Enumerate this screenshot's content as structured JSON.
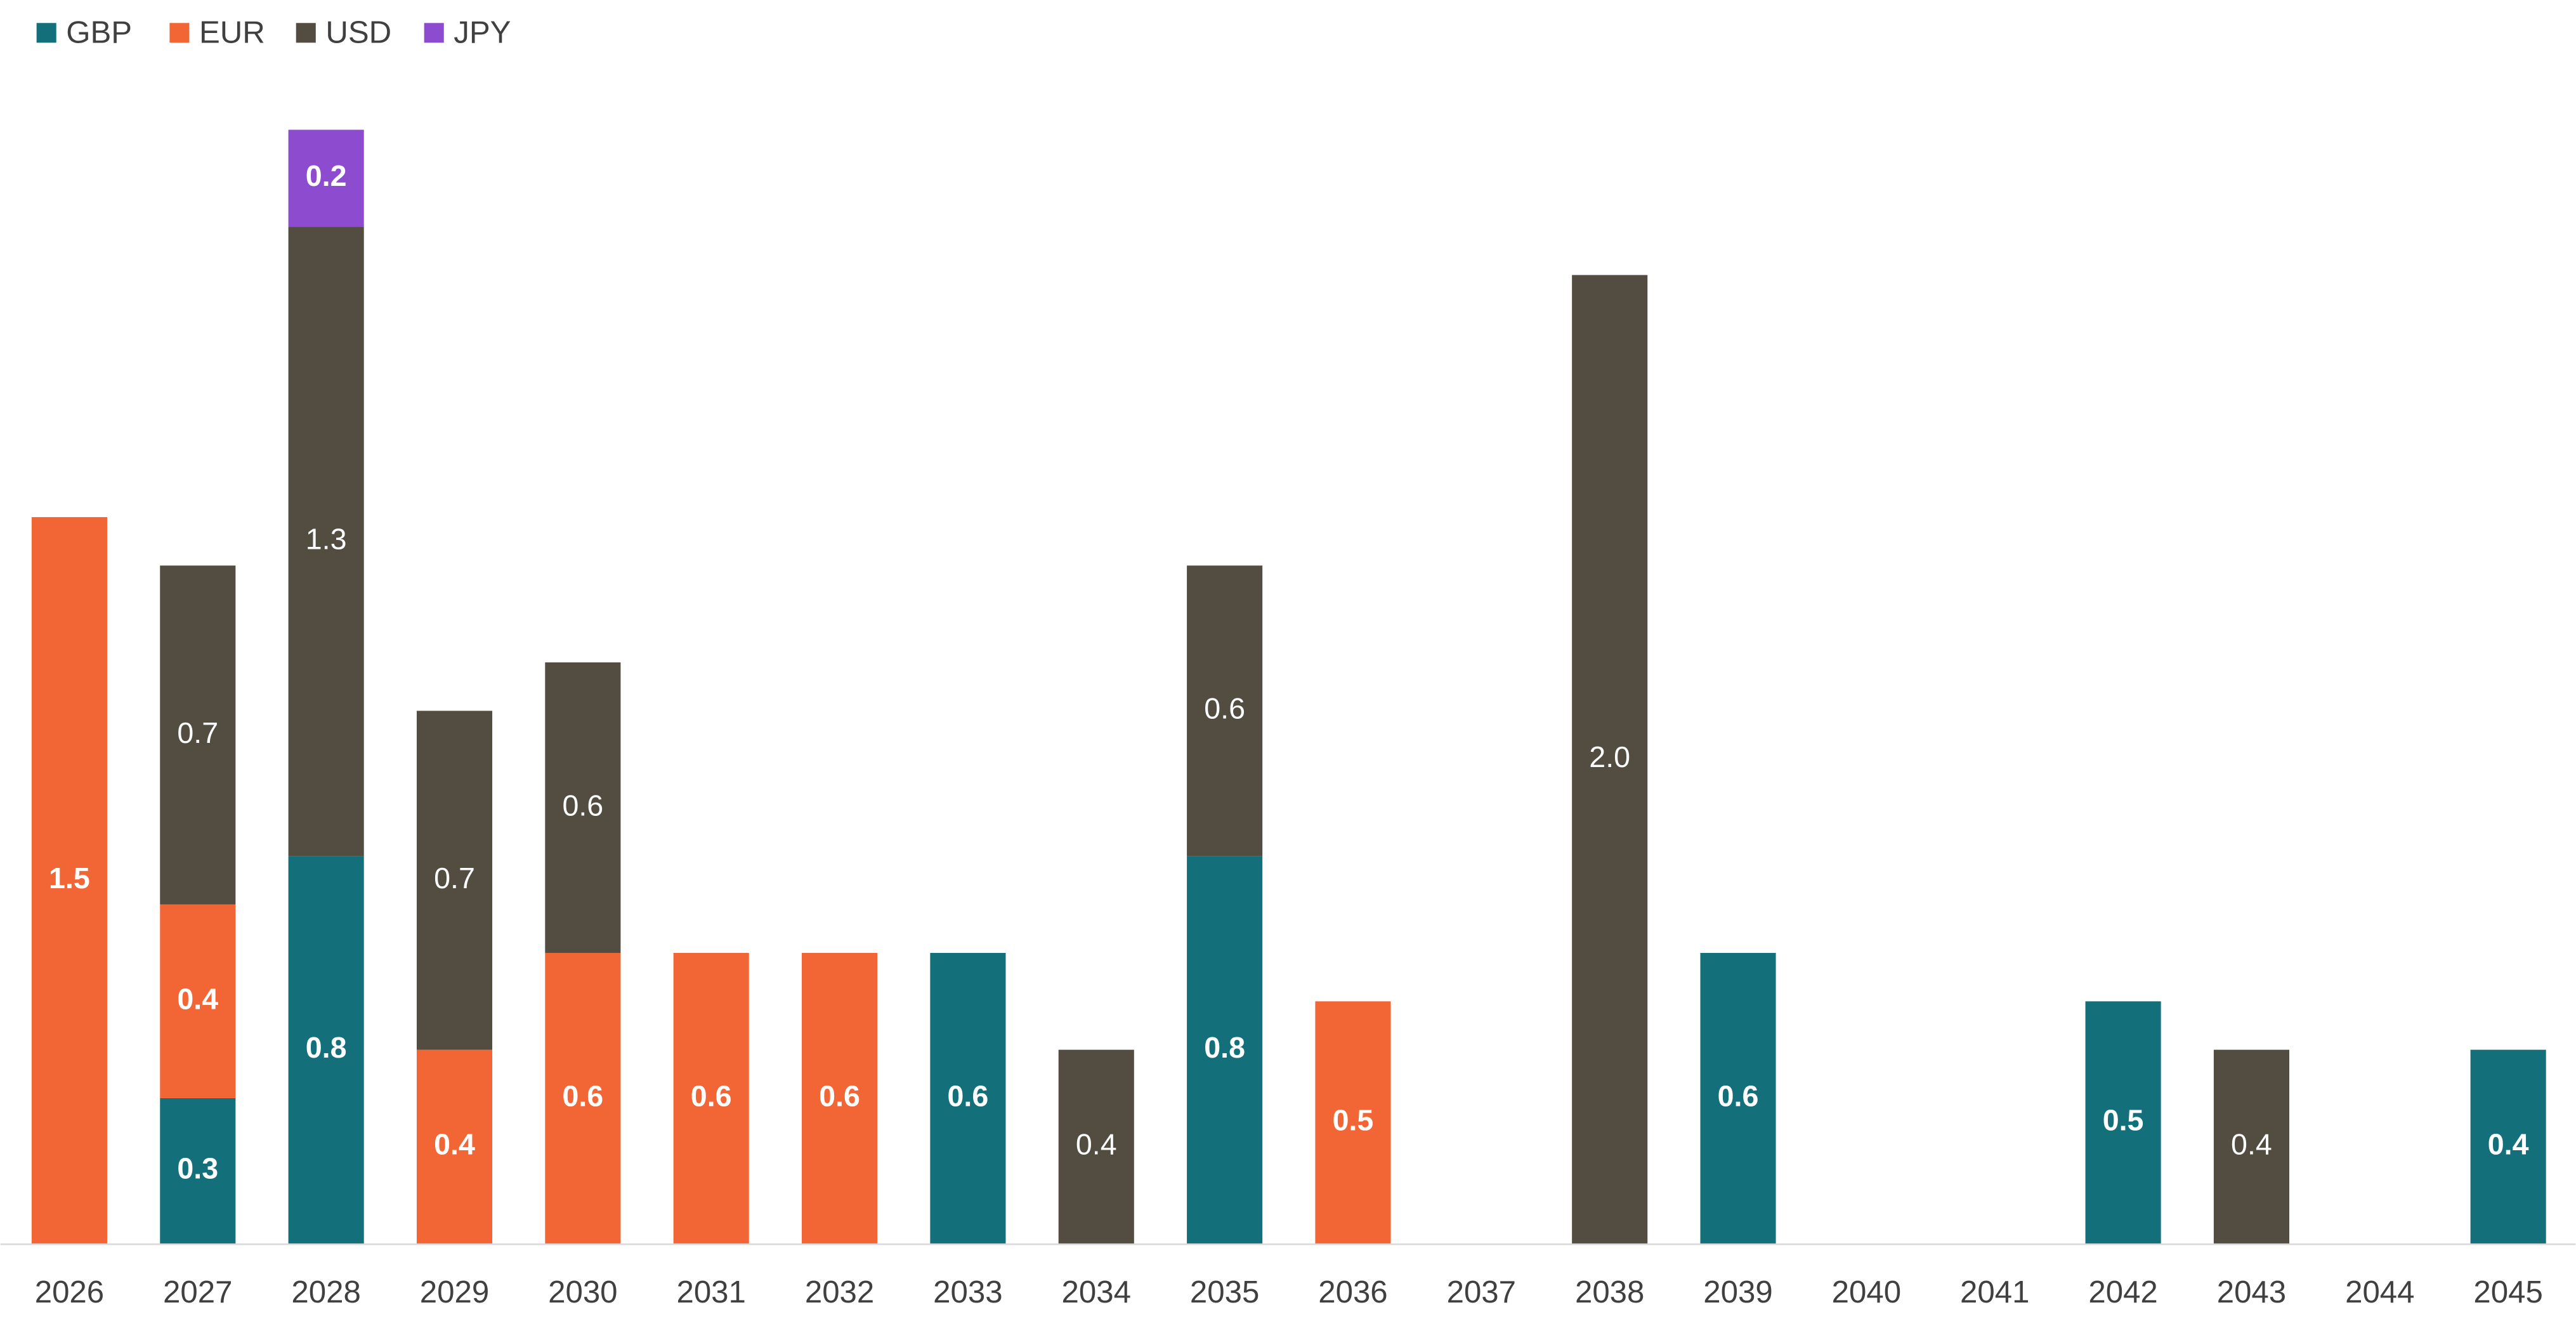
{
  "chart_data": {
    "type": "bar",
    "stacked": true,
    "categories": [
      "2026",
      "2027",
      "2028",
      "2029",
      "2030",
      "2031",
      "2032",
      "2033",
      "2034",
      "2035",
      "2036",
      "2037",
      "2038",
      "2039",
      "2040",
      "2041",
      "2042",
      "2043",
      "2044",
      "2045"
    ],
    "series": [
      {
        "name": "GBP",
        "color": "#13707a",
        "bold_labels": true,
        "values": [
          null,
          0.3,
          0.8,
          null,
          null,
          null,
          null,
          0.6,
          null,
          0.8,
          null,
          null,
          null,
          0.6,
          null,
          null,
          0.5,
          null,
          null,
          0.4
        ]
      },
      {
        "name": "EUR",
        "color": "#f26535",
        "bold_labels": true,
        "values": [
          1.5,
          0.4,
          null,
          0.4,
          0.6,
          0.6,
          0.6,
          null,
          null,
          null,
          0.5,
          null,
          null,
          null,
          null,
          null,
          null,
          null,
          null,
          null
        ]
      },
      {
        "name": "USD",
        "color": "#524d40",
        "bold_labels": false,
        "values": [
          null,
          0.7,
          1.3,
          0.7,
          0.6,
          null,
          null,
          null,
          0.4,
          0.6,
          null,
          null,
          2,
          null,
          null,
          null,
          null,
          0.4,
          null,
          null
        ],
        "value_labels": [
          null,
          "0.7",
          "1.3",
          "0.7",
          "0.6",
          null,
          null,
          null,
          "0.4",
          "0.6",
          null,
          null,
          "2.0",
          null,
          null,
          null,
          null,
          "0.4",
          null,
          null
        ]
      },
      {
        "name": "JPY",
        "color": "#8d4ccf",
        "bold_labels": true,
        "values": [
          null,
          null,
          0.2,
          null,
          null,
          null,
          null,
          null,
          null,
          null,
          null,
          null,
          null,
          null,
          null,
          null,
          null,
          null,
          null,
          null
        ]
      }
    ],
    "ylim": [
      0,
      2.3
    ],
    "legend": "top-left"
  }
}
